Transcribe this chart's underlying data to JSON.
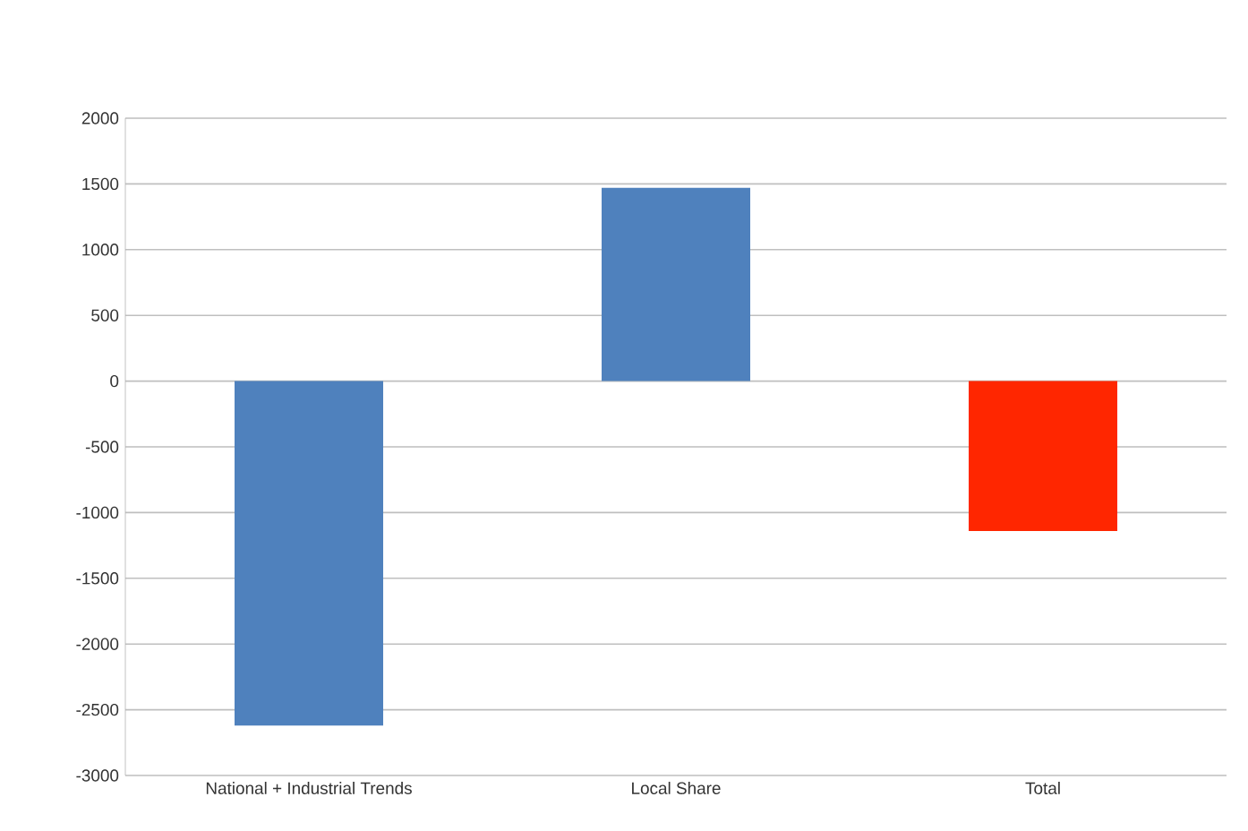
{
  "chart_data": {
    "type": "bar",
    "categories": [
      "National + Industrial Trends",
      "Local Share",
      "Total"
    ],
    "values": [
      -2620,
      1470,
      -1140
    ],
    "colors": [
      "#4f81bd",
      "#4f81bd",
      "#ff2600"
    ],
    "ylim": [
      -3000,
      2000
    ],
    "yticks": [
      -3000,
      -2500,
      -2000,
      -1500,
      -1000,
      -500,
      0,
      500,
      1000,
      1500,
      2000
    ],
    "grid": "y"
  }
}
